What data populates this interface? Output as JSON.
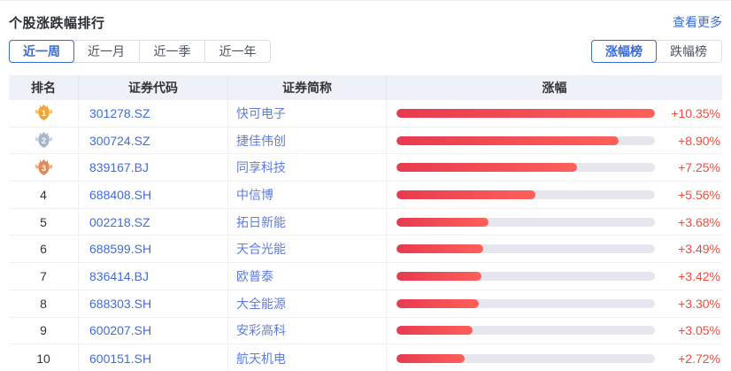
{
  "card": {
    "title": "个股涨跌幅排行",
    "more_label": "查看更多"
  },
  "period_tabs": {
    "items": [
      {
        "label": "近一周",
        "selected": true
      },
      {
        "label": "近一月",
        "selected": false
      },
      {
        "label": "近一季",
        "selected": false
      },
      {
        "label": "近一年",
        "selected": false
      }
    ]
  },
  "board_tabs": {
    "items": [
      {
        "label": "涨幅榜",
        "selected": true
      },
      {
        "label": "跌幅榜",
        "selected": false
      }
    ]
  },
  "table": {
    "columns": [
      "排名",
      "证券代码",
      "证券简称",
      "涨幅"
    ],
    "max_pct": 10.35,
    "rows": [
      {
        "rank": 1,
        "code": "301278.SZ",
        "name": "快可电子",
        "change": "+10.35%",
        "pct": 10.35
      },
      {
        "rank": 2,
        "code": "300724.SZ",
        "name": "捷佳伟创",
        "change": "+8.90%",
        "pct": 8.9
      },
      {
        "rank": 3,
        "code": "839167.BJ",
        "name": "同享科技",
        "change": "+7.25%",
        "pct": 7.25
      },
      {
        "rank": 4,
        "code": "688408.SH",
        "name": "中信博",
        "change": "+5.56%",
        "pct": 5.56
      },
      {
        "rank": 5,
        "code": "002218.SZ",
        "name": "拓日新能",
        "change": "+3.68%",
        "pct": 3.68
      },
      {
        "rank": 6,
        "code": "688599.SH",
        "name": "天合光能",
        "change": "+3.49%",
        "pct": 3.49
      },
      {
        "rank": 7,
        "code": "836414.BJ",
        "name": "欧普泰",
        "change": "+3.42%",
        "pct": 3.42
      },
      {
        "rank": 8,
        "code": "688303.SH",
        "name": "大全能源",
        "change": "+3.30%",
        "pct": 3.3
      },
      {
        "rank": 9,
        "code": "600207.SH",
        "name": "安彩高科",
        "change": "+3.05%",
        "pct": 3.05
      },
      {
        "rank": 10,
        "code": "600151.SH",
        "name": "航天机电",
        "change": "+2.72%",
        "pct": 2.72
      }
    ]
  },
  "medals": [
    {
      "name": "gold",
      "fill": "#f2a636",
      "light": "#f7c66a"
    },
    {
      "name": "silver",
      "fill": "#a8b6c9",
      "light": "#cbd4df"
    },
    {
      "name": "bronze",
      "fill": "#e28a5c",
      "light": "#efb28c"
    }
  ],
  "colors": {
    "accent_blue": "#3a6ad4",
    "code_blue": "#3f6dd6",
    "name_blue": "#5f7ce0",
    "pct_red": "#f5493a",
    "bar_gradient_start": "#e83a50",
    "bar_gradient_end": "#fd6059",
    "bar_track": "#e6e6ef"
  }
}
